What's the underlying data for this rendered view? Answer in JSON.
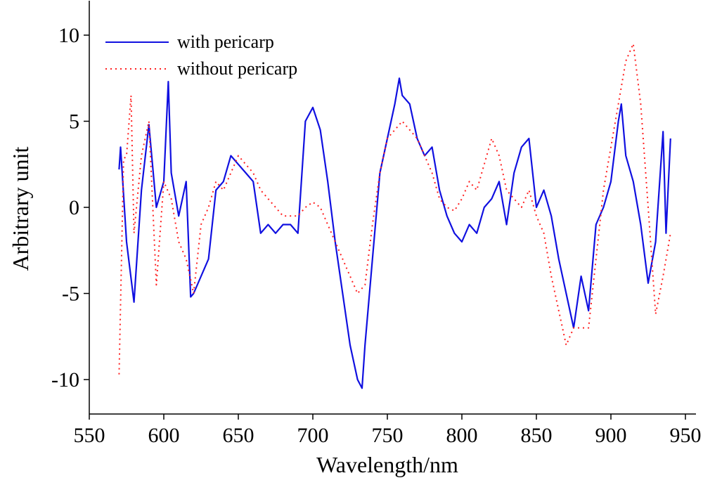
{
  "chart_data": {
    "type": "line",
    "xlabel": "Wavelength/nm",
    "ylabel": "Arbitrary unit",
    "xlim": [
      550,
      950
    ],
    "xticks": [
      550,
      600,
      650,
      700,
      750,
      800,
      850,
      900,
      950
    ],
    "ylim": [
      -12,
      12
    ],
    "yticks": [
      -10,
      -5,
      0,
      5,
      10
    ],
    "legend": "upper left",
    "series": [
      {
        "name": "with pericarp",
        "color": "#1010e0",
        "style": "solid",
        "x": [
          570,
          571,
          575,
          580,
          585,
          590,
          595,
          600,
          603,
          605,
          610,
          615,
          618,
          620,
          625,
          630,
          635,
          640,
          645,
          650,
          655,
          660,
          665,
          670,
          675,
          680,
          685,
          690,
          695,
          700,
          705,
          710,
          715,
          720,
          725,
          730,
          733,
          735,
          740,
          745,
          750,
          755,
          758,
          760,
          765,
          770,
          775,
          780,
          785,
          790,
          795,
          800,
          805,
          810,
          815,
          820,
          825,
          830,
          835,
          840,
          845,
          850,
          855,
          860,
          865,
          870,
          875,
          880,
          885,
          890,
          895,
          900,
          905,
          907,
          910,
          915,
          920,
          925,
          930,
          935,
          937,
          940
        ],
        "values": [
          2.2,
          3.5,
          -2,
          -5.5,
          1,
          4.8,
          0,
          1.5,
          7.3,
          2,
          -0.5,
          1.5,
          -5.2,
          -5,
          -4,
          -3,
          1,
          1.5,
          3,
          2.5,
          2,
          1.5,
          -1.5,
          -1,
          -1.5,
          -1,
          -1,
          -1.5,
          5,
          5.8,
          4.5,
          1.5,
          -2,
          -5,
          -8,
          -10,
          -10.5,
          -8,
          -3,
          2,
          4,
          6,
          7.5,
          6.5,
          6,
          4,
          3,
          3.5,
          1,
          -0.5,
          -1.5,
          -2,
          -1,
          -1.5,
          0,
          0.5,
          1.5,
          -1,
          2,
          3.5,
          4,
          0,
          1,
          -0.5,
          -3,
          -5,
          -7,
          -4,
          -6,
          -1,
          0,
          1.5,
          5,
          6,
          3,
          1.5,
          -1,
          -4.4,
          -2,
          4.4,
          -1.5,
          4
        ]
      },
      {
        "name": "without pericarp",
        "color": "#ff2020",
        "style": "dotted",
        "x": [
          570,
          573,
          575,
          578,
          580,
          585,
          590,
          595,
          600,
          605,
          610,
          615,
          620,
          625,
          630,
          635,
          640,
          645,
          650,
          655,
          660,
          665,
          670,
          675,
          680,
          685,
          690,
          695,
          700,
          705,
          710,
          715,
          720,
          725,
          730,
          735,
          740,
          745,
          750,
          755,
          760,
          765,
          770,
          775,
          780,
          785,
          790,
          795,
          800,
          805,
          810,
          815,
          820,
          825,
          830,
          835,
          840,
          845,
          850,
          855,
          860,
          865,
          870,
          875,
          880,
          885,
          890,
          895,
          900,
          905,
          910,
          915,
          920,
          925,
          930,
          935,
          940
        ],
        "values": [
          -9.7,
          2.8,
          3,
          6.5,
          -1.5,
          3,
          5,
          -4.5,
          1.5,
          0.5,
          -2,
          -3,
          -5,
          -1,
          0,
          1.5,
          1,
          2,
          3,
          2.5,
          2,
          1,
          0.5,
          0,
          -0.5,
          -0.5,
          -0.5,
          0,
          0.3,
          0,
          -1,
          -2,
          -3,
          -4,
          -5,
          -4.5,
          -1,
          2,
          4,
          4.5,
          5,
          4.5,
          4,
          3,
          2,
          0.5,
          0,
          -0.2,
          0.5,
          1.5,
          1,
          2.5,
          4,
          3,
          1,
          0.5,
          0,
          1,
          -0.5,
          -1.5,
          -4,
          -6,
          -8,
          -7,
          -7,
          -7,
          -3,
          1,
          3.5,
          6,
          8.5,
          9.5,
          6,
          0,
          -6.2,
          -4,
          -1.5
        ]
      }
    ]
  }
}
